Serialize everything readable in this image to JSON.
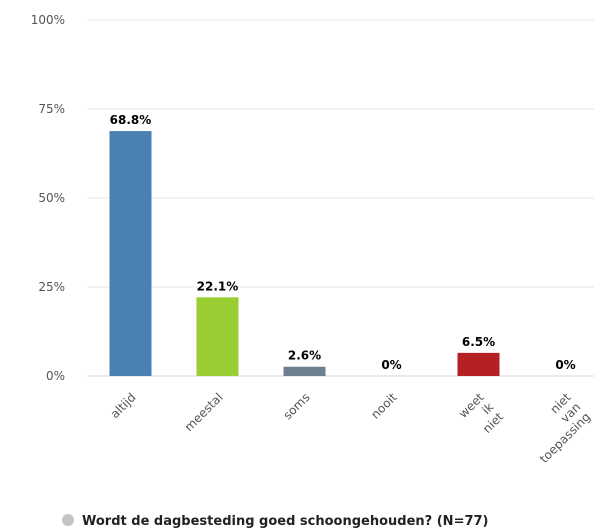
{
  "chart_data": {
    "type": "bar",
    "categories": [
      "altijd",
      "meestal",
      "soms",
      "nooit",
      "weet ik niet",
      "niet van toepassing"
    ],
    "series": [
      {
        "name": "Wordt de dagbesteding goed schoongehouden? (N=77)",
        "color": "#c4c4c4",
        "values": [
          68.8,
          22.1,
          2.6,
          0,
          6.5,
          0
        ],
        "value_labels": [
          "68.8%",
          "22.1%",
          "2.6%",
          "0%",
          "6.5%",
          "0%"
        ],
        "colors": [
          "#4a80b2",
          "#9acd32",
          "#6e7f90",
          "#444444",
          "#b52025",
          "#444444"
        ]
      }
    ],
    "ylim": [
      0,
      100
    ],
    "yticks": [
      {
        "value": 0,
        "label": "0%"
      },
      {
        "value": 25,
        "label": "25%"
      },
      {
        "value": 50,
        "label": "50%"
      },
      {
        "value": 75,
        "label": "75%"
      },
      {
        "value": 100,
        "label": "100%"
      }
    ],
    "grid": true,
    "legend": "bottom"
  }
}
